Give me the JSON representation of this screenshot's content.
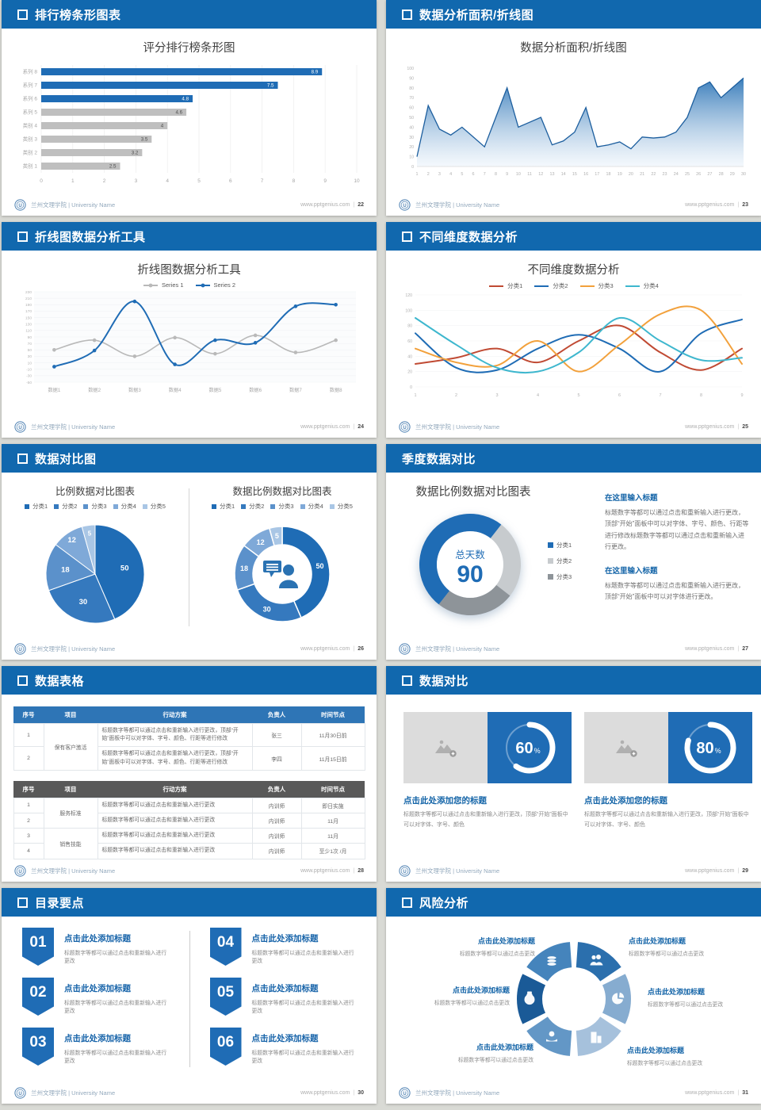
{
  "footer": {
    "brand": "兰州文理学院 | University Name",
    "site": "www.pptgenius.com",
    "logo": "university-seal"
  },
  "colors": {
    "header_blue": "#1168AE",
    "accent_blue": "#1F6CB5",
    "bar_gray": "#BFBFBF",
    "title_gray": "#404040"
  },
  "slides": {
    "s1": {
      "header": "排行榜条形图表",
      "square": true,
      "page": "22",
      "title": "评分排行榜条形图"
    },
    "s2": {
      "header": "数据分析面积/折线图",
      "square": true,
      "page": "23",
      "title": "数据分析面积/折线图"
    },
    "s3": {
      "header": "折线图数据分析工具",
      "square": true,
      "page": "24",
      "title": "折线图数据分析工具"
    },
    "s4": {
      "header": "不同维度数据分析",
      "square": true,
      "page": "25",
      "title": "不同维度数据分析"
    },
    "s5": {
      "header": "数据对比图",
      "square": true,
      "page": "26",
      "left_title": "比例数据对比图表",
      "right_title": "数据比例数据对比图表"
    },
    "s6": {
      "header": "季度数据对比",
      "square": false,
      "page": "27",
      "title": "数据比例数据对比图表",
      "blocks": [
        {
          "heading": "在这里输入标题",
          "text": "标题数字等都可以通过点击和重新输入进行更改，顶部“开始”面板中可以对字体、字号、颜色、行距等进行修改标题数字等都可以通过点击和重新输入进行更改。"
        },
        {
          "heading": "在这里输入标题",
          "text": "标题数字等都可以通过点击和重新输入进行更改，顶部“开始”面板中可以对字体进行更改。"
        }
      ]
    },
    "s7": {
      "header": "数据表格",
      "square": true,
      "page": "28",
      "table1": {
        "header_bg": "#2E75B6",
        "columns": [
          "序号",
          "项目",
          "行动方案",
          "负责人",
          "时间节点"
        ],
        "groups": [
          {
            "project": "保有客户激活",
            "rows": [
              {
                "no": "1",
                "action": "标题数字等都可以通过点击和重新输入进行更改，顶部“开始”面板中可以对字体、字号、颜色、行距等进行修改",
                "owner": "张三",
                "time": "11月30日前"
              },
              {
                "no": "2",
                "action": "标题数字等都可以通过点击和重新输入进行更改，顶部“开始”面板中可以对字体、字号、颜色、行距等进行修改",
                "owner": "李四",
                "time": "11月15日前"
              }
            ]
          }
        ]
      },
      "table2": {
        "header_bg": "#595959",
        "columns": [
          "序号",
          "项目",
          "行动方案",
          "负责人",
          "时间节点"
        ],
        "groups": [
          {
            "project": "服务标准",
            "rows": [
              {
                "no": "1",
                "action": "标题数字等都可以通过点击和重新输入进行更改",
                "owner": "内训师",
                "time": "即日实施"
              },
              {
                "no": "2",
                "action": "标题数字等都可以通过点击和重新输入进行更改",
                "owner": "内训师",
                "time": "11月"
              }
            ]
          },
          {
            "project": "销售技能",
            "rows": [
              {
                "no": "3",
                "action": "标题数字等都可以通过点击和重新输入进行更改",
                "owner": "内训师",
                "time": "11月"
              },
              {
                "no": "4",
                "action": "标题数字等都可以通过点击和重新输入进行更改",
                "owner": "内训师",
                "time": "至少1次 /月"
              }
            ]
          }
        ]
      }
    },
    "s8": {
      "header": "数据对比",
      "square": true,
      "page": "29",
      "cards": [
        {
          "percent": "60",
          "heading": "点击此处添加您的标题",
          "text": "标题数字等都可以通过点击和重新输入进行更改，顶部“开始”面板中可以对字体、字号、颜色"
        },
        {
          "percent": "80",
          "heading": "点击此处添加您的标题",
          "text": "标题数字等都可以通过点击和重新输入进行更改，顶部“开始”面板中可以对字体、字号、颜色"
        }
      ]
    },
    "s9": {
      "header": "目录要点",
      "square": true,
      "page": "30",
      "items": [
        {
          "num": "01",
          "title": "点击此处添加标题",
          "text": "标题数字等都可以通过点击和重新输入进行更改"
        },
        {
          "num": "02",
          "title": "点击此处添加标题",
          "text": "标题数字等都可以通过点击和重新输入进行更改"
        },
        {
          "num": "03",
          "title": "点击此处添加标题",
          "text": "标题数字等都可以通过点击和重新输入进行更改"
        },
        {
          "num": "04",
          "title": "点击此处添加标题",
          "text": "标题数字等都可以通过点击和重新输入进行更改"
        },
        {
          "num": "05",
          "title": "点击此处添加标题",
          "text": "标题数字等都可以通过点击和重新输入进行更改"
        },
        {
          "num": "06",
          "title": "点击此处添加标题",
          "text": "标题数字等都可以通过点击和重新输入进行更改"
        }
      ]
    },
    "s10": {
      "header": "风险分析",
      "square": true,
      "page": "31",
      "labels": [
        {
          "title": "点击此处添加标题",
          "text": "标题数字等都可以通过点击更改"
        },
        {
          "title": "点击此处添加标题",
          "text": "标题数字等都可以通过点击更改"
        },
        {
          "title": "点击此处添加标题",
          "text": "标题数字等都可以通过点击更改"
        },
        {
          "title": "点击此处添加标题",
          "text": "标题数字等都可以通过点击更改"
        },
        {
          "title": "点击此处添加标题",
          "text": "标题数字等都可以通过点击更改"
        },
        {
          "title": "点击此处添加标题",
          "text": "标题数字等都可以通过点击更改"
        }
      ],
      "icons": [
        "money-bag-icon",
        "coins-icon",
        "people-icon",
        "pie-chart-icon",
        "building-icon",
        "hand-coin-icon"
      ],
      "petal_colors": [
        "#1A5A97",
        "#4584BC",
        "#2B6FAD",
        "#86ACD0",
        "#A6C1DC",
        "#6397C6"
      ]
    }
  },
  "chart_data": {
    "ranking_bar": {
      "type": "bar",
      "title": "评分排行榜条形图",
      "categories": [
        "系列 8",
        "系列 7",
        "系列 6",
        "系列 5",
        "类别 4",
        "类别 3",
        "类别 2",
        "类别 1"
      ],
      "values": [
        8.9,
        7.5,
        4.8,
        4.6,
        4,
        3.5,
        3.2,
        2.5
      ],
      "bar_colors": [
        "#1F6CB5",
        "#1F6CB5",
        "#1F6CB5",
        "#BFBFBF",
        "#BFBFBF",
        "#BFBFBF",
        "#BFBFBF",
        "#BFBFBF"
      ],
      "xlim": [
        0,
        10
      ],
      "xticks": [
        0,
        1,
        2,
        3,
        4,
        5,
        6,
        7,
        8,
        9,
        10
      ]
    },
    "area": {
      "type": "area",
      "title": "数据分析面积/折线图",
      "x": [
        1,
        2,
        3,
        4,
        5,
        6,
        7,
        8,
        9,
        10,
        11,
        12,
        13,
        14,
        15,
        16,
        17,
        18,
        19,
        20,
        21,
        22,
        23,
        24,
        25,
        26,
        27,
        28,
        29,
        30
      ],
      "values": [
        10,
        62,
        38,
        32,
        40,
        30,
        20,
        50,
        80,
        40,
        45,
        50,
        22,
        26,
        35,
        60,
        20,
        22,
        25,
        18,
        30,
        29,
        30,
        35,
        50,
        80,
        86,
        70,
        80,
        90
      ],
      "ylim": [
        0,
        100
      ],
      "ystep": 10,
      "line_color": "#1C5E9E",
      "fill_top": "#2F76B7",
      "fill_bottom": "#EAF2FA"
    },
    "two_series_line": {
      "type": "line",
      "title": "折线图数据分析工具",
      "categories": [
        "数据1",
        "数据2",
        "数据3",
        "数据4",
        "数据5",
        "数据6",
        "数据7",
        "数据8"
      ],
      "series": [
        {
          "name": "Series 1",
          "color": "#B9B9B9",
          "values": [
            50,
            80,
            30,
            88,
            38,
            95,
            42,
            80
          ]
        },
        {
          "name": "Series 2",
          "color": "#1F6CB5",
          "values": [
            -2,
            48,
            200,
            5,
            80,
            72,
            185,
            190
          ]
        }
      ],
      "ylim": [
        -50,
        230
      ],
      "ystep": 20
    },
    "four_series_line": {
      "type": "line",
      "title": "不同维度数据分析",
      "x": [
        1,
        2,
        3,
        4,
        5,
        6,
        7,
        8,
        9
      ],
      "series": [
        {
          "name": "分类1",
          "color": "#C04A33",
          "values": [
            30,
            38,
            50,
            32,
            60,
            80,
            45,
            22,
            50
          ]
        },
        {
          "name": "分类2",
          "color": "#1F6CB5",
          "values": [
            70,
            25,
            22,
            50,
            68,
            50,
            20,
            70,
            88
          ]
        },
        {
          "name": "分类3",
          "color": "#F2A13C",
          "values": [
            50,
            32,
            28,
            60,
            20,
            55,
            95,
            100,
            30
          ]
        },
        {
          "name": "分类4",
          "color": "#3EB7CE",
          "values": [
            90,
            55,
            25,
            20,
            45,
            90,
            60,
            35,
            38
          ]
        }
      ],
      "ylim": [
        0,
        120
      ],
      "ystep": 20
    },
    "proportion_pie": {
      "type": "pie",
      "legend": [
        "分类1",
        "分类2",
        "分类3",
        "分类4",
        "分类5"
      ],
      "values": [
        50,
        30,
        18,
        12,
        5
      ],
      "colors": [
        "#1F6CB5",
        "#3579BE",
        "#5B91CB",
        "#7FA9D8",
        "#A9C6E5"
      ],
      "left_title": "比例数据对比图表",
      "right_title": "数据比例数据对比图表"
    },
    "quarter_donut": {
      "type": "pie",
      "legend": [
        "分类1",
        "分类2",
        "分类3"
      ],
      "values": [
        50,
        25,
        25
      ],
      "colors": [
        "#1F6CB5",
        "#C7CBCE",
        "#8E9499"
      ],
      "center_label": "总天数",
      "center_value": "90"
    },
    "progress_rings": {
      "type": "pie",
      "values": [
        60,
        80
      ],
      "unit": "%"
    }
  }
}
